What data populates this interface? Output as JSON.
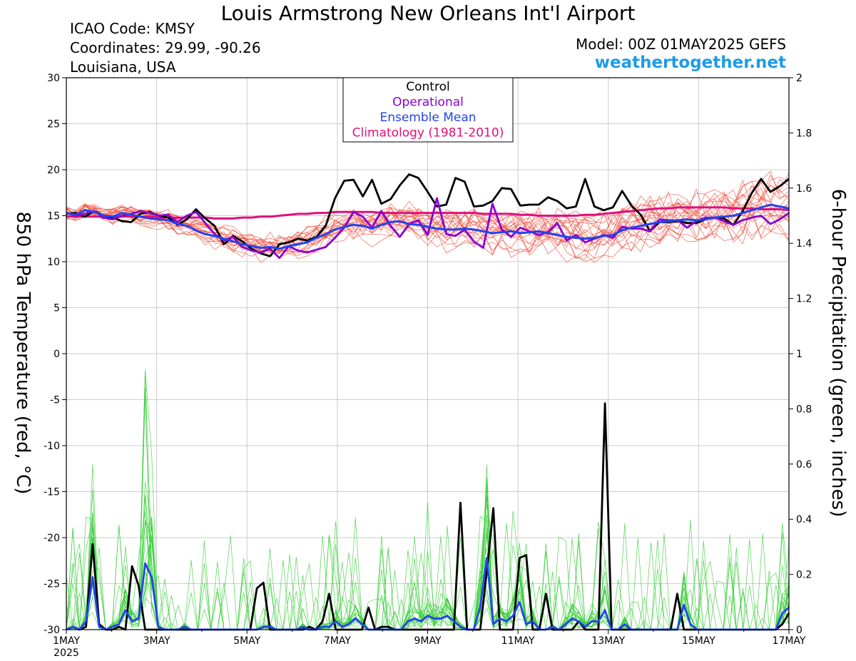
{
  "header": {
    "title": "Louis Armstrong New Orleans Int'l Airport",
    "icao": "ICAO Code: KMSY",
    "coords": "Coordinates: 29.99, -90.26",
    "region": "Louisiana, USA",
    "model": "Model: 00Z 01MAY2025 GEFS",
    "site": "weathertogether.net"
  },
  "chart_data": {
    "type": "line",
    "title": "Louis Armstrong New Orleans Int'l Airport",
    "xlabel": "",
    "ylabel": "850 hPa Temperature (red, °C)",
    "ylabel_right": "6-hour Precipitation (green, inches)",
    "ylim": [
      -30,
      30
    ],
    "ylim_right": [
      0,
      2
    ],
    "xlim_hours": [
      0,
      384
    ],
    "x_ticks": [
      "1MAY",
      "3MAY",
      "5MAY",
      "7MAY",
      "9MAY",
      "11MAY",
      "13MAY",
      "15MAY",
      "17MAY"
    ],
    "x_tick_year": "2025",
    "y_ticks_left": [
      "30",
      "25",
      "20",
      "15",
      "10",
      "5",
      "0",
      "-5",
      "-10",
      "-15",
      "-20",
      "-25",
      "-30"
    ],
    "y_ticks_right": [
      "2",
      "1.8",
      "1.6",
      "1.4",
      "1.2",
      "1",
      "0.8",
      "0.6",
      "0.4",
      "0.2",
      "0"
    ],
    "legend": {
      "placement": "top-center",
      "entries": [
        {
          "label": "Control",
          "color": "#000000"
        },
        {
          "label": "Operational",
          "color": "#8a00d4"
        },
        {
          "label": "Ensemble Mean",
          "color": "#2244ee"
        },
        {
          "label": "Climatology (1981-2010)",
          "color": "#e0107a"
        }
      ]
    },
    "colors": {
      "members_temp": "#f04a3a",
      "members_precip": "#35cc35",
      "control": "#000000",
      "operational": "#8a00d4",
      "ensemble_mean": "#2244ee",
      "climatology": "#e0107a"
    },
    "temperature": {
      "control": [
        15.2,
        15.3,
        14.9,
        15.5,
        15.0,
        14.8,
        14.4,
        14.3,
        15.2,
        15.4,
        15.0,
        14.8,
        14.0,
        14.6,
        15.7,
        14.7,
        13.9,
        11.9,
        12.8,
        12.2,
        11.4,
        10.9,
        10.6,
        11.9,
        12.1,
        12.5,
        12.3,
        12.7,
        13.9,
        16.9,
        18.8,
        18.9,
        17.1,
        18.9,
        16.3,
        16.8,
        18.3,
        19.5,
        19.1,
        17.6,
        16.0,
        16.2,
        19.1,
        18.7,
        16.0,
        16.1,
        16.6,
        18.0,
        17.9,
        16.1,
        16.2,
        16.2,
        17.0,
        16.6,
        15.8,
        16.0,
        19.0,
        16.0,
        15.6,
        15.9,
        17.7,
        16.1,
        15.1,
        13.3,
        14.3,
        14.3,
        14.4,
        14.2,
        14.2,
        14.6,
        14.8,
        14.7,
        14.0,
        15.5,
        17.5,
        19.0,
        17.6,
        18.2,
        19.0
      ],
      "operational": [
        15.3,
        15.0,
        15.2,
        15.5,
        14.8,
        14.6,
        15.0,
        15.2,
        15.5,
        15.3,
        15.0,
        15.1,
        14.3,
        15.0,
        15.4,
        14.2,
        13.0,
        12.3,
        12.7,
        11.6,
        11.2,
        11.0,
        11.4,
        10.4,
        11.7,
        11.2,
        11.0,
        11.3,
        11.6,
        12.6,
        13.7,
        15.4,
        14.9,
        13.7,
        15.5,
        13.9,
        12.7,
        14.1,
        14.5,
        12.9,
        16.9,
        13.0,
        12.8,
        13.5,
        12.2,
        11.5,
        16.3,
        13.5,
        12.7,
        13.7,
        13.3,
        12.9,
        13.2,
        14.2,
        12.3,
        12.9,
        12.1,
        12.5,
        12.9,
        12.6,
        13.8,
        13.6,
        13.6,
        13.3,
        14.6,
        14.5,
        14.5,
        13.7,
        14.4,
        14.8,
        14.8,
        14.4,
        14.0,
        14.5,
        14.8,
        15.0,
        14.1,
        14.6,
        15.3
      ],
      "ensemble_mean": [
        15.3,
        15.1,
        15.6,
        15.4,
        15.0,
        14.9,
        15.3,
        15.1,
        14.9,
        14.7,
        14.6,
        14.5,
        14.1,
        13.9,
        13.4,
        13.0,
        12.8,
        12.5,
        12.2,
        11.9,
        11.7,
        11.5,
        11.6,
        11.4,
        11.7,
        11.9,
        12.1,
        12.6,
        13.0,
        13.5,
        13.8,
        14.0,
        13.9,
        13.6,
        14.0,
        14.3,
        14.4,
        14.1,
        14.0,
        13.8,
        13.6,
        13.5,
        13.5,
        13.6,
        13.5,
        13.3,
        13.1,
        13.2,
        13.3,
        13.1,
        13.2,
        13.3,
        13.1,
        12.9,
        12.7,
        12.6,
        12.5,
        12.6,
        12.8,
        12.9,
        13.4,
        13.7,
        13.9,
        14.1,
        14.3,
        14.4,
        14.5,
        14.6,
        14.5,
        14.6,
        14.8,
        14.9,
        15.0,
        15.3,
        15.6,
        15.9,
        16.2,
        16.0,
        15.8
      ],
      "climatology": [
        14.9,
        14.9,
        14.9,
        14.9,
        14.9,
        14.9,
        14.9,
        14.9,
        14.9,
        14.9,
        14.8,
        14.8,
        14.8,
        14.8,
        14.8,
        14.8,
        14.7,
        14.7,
        14.7,
        14.8,
        14.8,
        14.9,
        14.9,
        15.0,
        15.1,
        15.2,
        15.2,
        15.3,
        15.3,
        15.4,
        15.4,
        15.4,
        15.4,
        15.4,
        15.3,
        15.3,
        15.3,
        15.3,
        15.3,
        15.3,
        15.3,
        15.3,
        15.3,
        15.3,
        15.3,
        15.2,
        15.2,
        15.2,
        15.2,
        15.1,
        15.1,
        15.0,
        15.0,
        15.0,
        15.0,
        15.0,
        15.1,
        15.1,
        15.2,
        15.3,
        15.4,
        15.5,
        15.6,
        15.7,
        15.8,
        15.8,
        15.9,
        15.9,
        15.9,
        15.9,
        15.9,
        15.9,
        15.8,
        15.8,
        15.8,
        15.7,
        15.7,
        15.7,
        15.6
      ]
    },
    "precipitation": {
      "control": [
        0,
        0.01,
        0.0,
        0.01,
        0.31,
        0.02,
        0.0,
        0.0,
        0.01,
        0.0,
        0.23,
        0.16,
        0.0,
        0.0,
        0.0,
        0.0,
        0.0,
        0.0,
        0.0,
        0.0,
        0.0,
        0.0,
        0.0,
        0.0,
        0.0,
        0.0,
        0.0,
        0.0,
        0.0,
        0.15,
        0.17,
        0.0,
        0.0,
        0.0,
        0.0,
        0.0,
        0.0,
        0.01,
        0.0,
        0.03,
        0.13,
        0.0,
        0.0,
        0.0,
        0.0,
        0.0,
        0.08,
        0.0,
        0.01,
        0.01,
        0.0,
        0.0,
        0.0,
        0.0,
        0.0,
        0.0,
        0.0,
        0.0,
        0.0,
        0.0,
        0.46,
        0.0,
        0.0,
        0.0,
        0.21,
        0.44,
        0.0,
        0.0,
        0.0,
        0.26,
        0.27,
        0.0,
        0.0,
        0.13,
        0.0,
        0.0,
        0.0,
        0.0,
        0.03,
        0.0,
        0.0,
        0.0,
        0.82,
        0.0,
        0.0,
        0.0,
        0.0,
        0.0,
        0.0,
        0.0,
        0.0,
        0.0,
        0.0,
        0.13,
        0.0,
        0.0,
        0.0,
        0.0,
        0.0,
        0.0,
        0.0,
        0.0,
        0.0,
        0.0,
        0.0,
        0.0,
        0.0,
        0.0,
        0.0,
        0.02,
        0.06
      ],
      "ensemble_mean": [
        0,
        0.01,
        0.0,
        0.03,
        0.19,
        0.01,
        0.0,
        0.01,
        0.02,
        0.07,
        0.03,
        0.04,
        0.24,
        0.19,
        0.01,
        0.0,
        0.0,
        0.0,
        0.01,
        0.0,
        0.0,
        0.0,
        0.0,
        0.0,
        0.0,
        0.0,
        0.0,
        0.0,
        0.0,
        0.0,
        0.01,
        0.01,
        0.0,
        0.0,
        0.0,
        0.0,
        0.01,
        0.0,
        0.0,
        0.01,
        0.01,
        0.03,
        0.01,
        0.02,
        0.04,
        0.02,
        0.0,
        0.0,
        0.0,
        0.0,
        0.0,
        0.0,
        0.03,
        0.04,
        0.03,
        0.05,
        0.04,
        0.04,
        0.05,
        0.03,
        0.01,
        0.0,
        0.0,
        0.08,
        0.26,
        0.02,
        0.04,
        0.03,
        0.05,
        0.1,
        0.02,
        0.03,
        0.0,
        0.0,
        0.01,
        0.0,
        0.02,
        0.04,
        0.03,
        0.01,
        0.03,
        0.03,
        0.07,
        0.0,
        0.0,
        0.02,
        0.0,
        0.0,
        0.0,
        0.0,
        0.0,
        0.0,
        0.0,
        0.0,
        0.09,
        0.02,
        0.0,
        0.0,
        0.0,
        0.0,
        0.0,
        0.0,
        0.0,
        0.0,
        0.0,
        0.0,
        0.0,
        0.0,
        0.0,
        0.06,
        0.08
      ]
    }
  }
}
